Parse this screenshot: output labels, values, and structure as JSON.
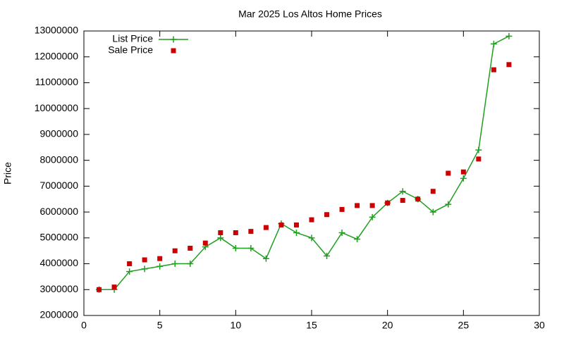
{
  "chart_data": {
    "type": "line",
    "title": "Mar 2025 Los Altos Home Prices",
    "y_label": "Price",
    "x": [
      1,
      2,
      3,
      4,
      5,
      6,
      7,
      8,
      9,
      10,
      11,
      12,
      13,
      14,
      15,
      16,
      17,
      18,
      19,
      20,
      21,
      22,
      23,
      24,
      25,
      26,
      27,
      28
    ],
    "series": [
      {
        "name": "List Price",
        "color": "#1f9e1f",
        "style": "linespoints",
        "values": [
          3000000,
          3000000,
          3700000,
          3800000,
          3900000,
          4000000,
          4000000,
          4650000,
          5000000,
          4600000,
          4600000,
          4200000,
          5550000,
          5200000,
          5000000,
          4300000,
          5200000,
          4950000,
          5800000,
          6350000,
          6800000,
          6500000,
          6000000,
          6300000,
          7300000,
          8400000,
          12500000,
          12800000
        ]
      },
      {
        "name": "Sale Price",
        "color": "#cc0000",
        "style": "points",
        "values": [
          3000000,
          3100000,
          4000000,
          4150000,
          4200000,
          4500000,
          4600000,
          4800000,
          5200000,
          5200000,
          5250000,
          5400000,
          5500000,
          5500000,
          5700000,
          5900000,
          6100000,
          6250000,
          6250000,
          6350000,
          6450000,
          6500000,
          6800000,
          7500000,
          7550000,
          8050000,
          11500000,
          11700000
        ]
      }
    ],
    "xlim": [
      0,
      30
    ],
    "xticks": [
      0,
      5,
      10,
      15,
      20,
      25,
      30
    ],
    "ylim": [
      2000000,
      13000000
    ],
    "yticks": [
      2000000,
      3000000,
      4000000,
      5000000,
      6000000,
      7000000,
      8000000,
      9000000,
      10000000,
      11000000,
      12000000,
      13000000
    ],
    "legend": "top left",
    "grid": false
  }
}
